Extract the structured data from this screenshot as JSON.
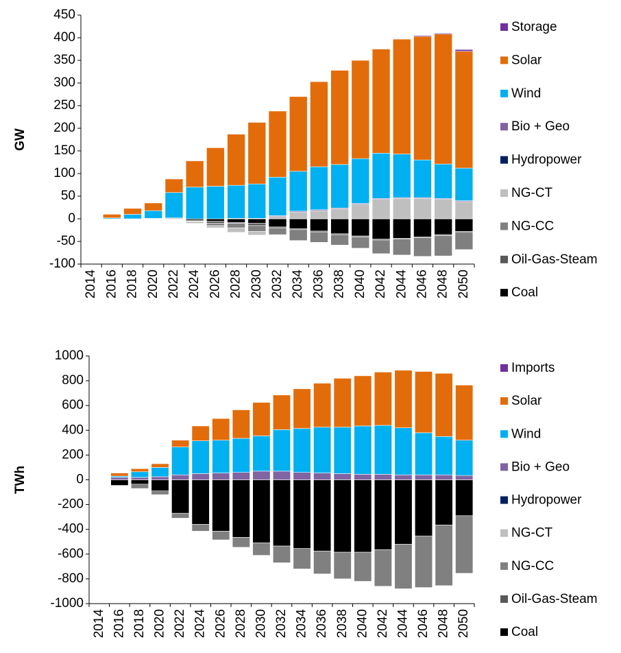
{
  "chart_data": [
    {
      "type": "bar",
      "stacked": true,
      "ylabel": "GW",
      "categories": [
        "2014",
        "2016",
        "2018",
        "2020",
        "2022",
        "2024",
        "2026",
        "2028",
        "2030",
        "2032",
        "2034",
        "2036",
        "2038",
        "2040",
        "2042",
        "2044",
        "2046",
        "2048",
        "2050"
      ],
      "series": [
        {
          "name": "Coal",
          "color": "#000000",
          "values": [
            0,
            0,
            0,
            0,
            -1,
            -3,
            -5,
            -8,
            -10,
            -18,
            -22,
            -27,
            -33,
            -38,
            -45,
            -43,
            -40,
            -35,
            -28
          ]
        },
        {
          "name": "Oil-Gas-Steam",
          "color": "#595959",
          "values": [
            0,
            0,
            0,
            0,
            -1,
            -2,
            -5,
            -2,
            -5,
            -2,
            -2,
            -2,
            -2,
            -2,
            -2,
            -2,
            -2,
            -2,
            -2
          ]
        },
        {
          "name": "NG-CC",
          "color": "#808080",
          "values": [
            0,
            0,
            0,
            0,
            0,
            -1,
            -5,
            -10,
            -13,
            -15,
            -24,
            -23,
            -23,
            -25,
            -30,
            -35,
            -41,
            -45,
            -38
          ]
        },
        {
          "name": "NG-CT",
          "color": "#bfbfbf",
          "values": [
            0,
            0,
            0,
            1,
            2,
            -4,
            -5,
            -10,
            -8,
            5,
            15,
            18,
            22,
            32,
            43,
            45,
            45,
            43,
            38
          ]
        },
        {
          "name": "Hydropower",
          "color": "#002060",
          "values": [
            0,
            0,
            0,
            0,
            0,
            0,
            0,
            0,
            0,
            0,
            0,
            0,
            0,
            0,
            0,
            0,
            0,
            0,
            0
          ]
        },
        {
          "name": "Bio + Geo",
          "color": "#8064a2",
          "values": [
            0,
            0,
            0,
            0,
            0,
            0,
            0,
            1,
            1,
            2,
            2,
            2,
            2,
            2,
            2,
            2,
            2,
            2,
            2
          ]
        },
        {
          "name": "Wind",
          "color": "#00b0f0",
          "values": [
            0,
            2,
            10,
            17,
            56,
            70,
            72,
            73,
            76,
            85,
            88,
            95,
            96,
            99,
            100,
            96,
            83,
            76,
            72
          ]
        },
        {
          "name": "Solar",
          "color": "#e36c0a",
          "values": [
            0,
            8,
            13,
            17,
            30,
            58,
            85,
            113,
            136,
            146,
            165,
            188,
            208,
            217,
            230,
            254,
            273,
            287,
            258
          ]
        },
        {
          "name": "Storage",
          "color": "#7030a0",
          "values": [
            0,
            0,
            0,
            0,
            0,
            0,
            0,
            0,
            0,
            0,
            0,
            1,
            0,
            0,
            0,
            1,
            2,
            2,
            4
          ]
        }
      ],
      "ylim": [
        -100,
        450
      ],
      "yticks": [
        -100,
        -50,
        0,
        50,
        100,
        150,
        200,
        250,
        300,
        350,
        400,
        450
      ],
      "legend": "right"
    },
    {
      "type": "bar",
      "stacked": true,
      "ylabel": "TWh",
      "categories": [
        "2014",
        "2016",
        "2018",
        "2020",
        "2022",
        "2024",
        "2026",
        "2028",
        "2030",
        "2032",
        "2034",
        "2036",
        "2038",
        "2040",
        "2042",
        "2044",
        "2046",
        "2048",
        "2050"
      ],
      "series": [
        {
          "name": "Coal",
          "color": "#000000",
          "values": [
            0,
            -45,
            -35,
            -90,
            -270,
            -360,
            -415,
            -465,
            -510,
            -535,
            -555,
            -575,
            -585,
            -585,
            -565,
            -520,
            -455,
            -365,
            -290
          ]
        },
        {
          "name": "Oil-Gas-Steam",
          "color": "#595959",
          "values": [
            0,
            0,
            0,
            0,
            0,
            0,
            0,
            0,
            0,
            0,
            0,
            0,
            0,
            0,
            0,
            0,
            0,
            0,
            0
          ]
        },
        {
          "name": "NG-CC",
          "color": "#808080",
          "values": [
            0,
            0,
            -35,
            -30,
            -40,
            -55,
            -70,
            -80,
            -100,
            -135,
            -165,
            -185,
            -215,
            -235,
            -295,
            -360,
            -415,
            -490,
            -465
          ]
        },
        {
          "name": "NG-CT",
          "color": "#bfbfbf",
          "values": [
            0,
            0,
            0,
            0,
            0,
            0,
            0,
            0,
            0,
            0,
            0,
            0,
            0,
            0,
            0,
            0,
            0,
            0,
            0
          ]
        },
        {
          "name": "Hydropower",
          "color": "#002060",
          "values": [
            0,
            0,
            0,
            0,
            0,
            0,
            0,
            0,
            0,
            0,
            0,
            0,
            0,
            0,
            0,
            0,
            0,
            0,
            0
          ]
        },
        {
          "name": "Bio + Geo",
          "color": "#8064a2",
          "values": [
            0,
            20,
            20,
            25,
            40,
            50,
            55,
            60,
            70,
            70,
            60,
            55,
            50,
            45,
            45,
            40,
            40,
            40,
            35
          ]
        },
        {
          "name": "Wind",
          "color": "#00b0f0",
          "values": [
            0,
            10,
            45,
            75,
            225,
            265,
            265,
            275,
            285,
            335,
            355,
            370,
            375,
            390,
            395,
            380,
            340,
            310,
            285
          ]
        },
        {
          "name": "Solar",
          "color": "#e36c0a",
          "values": [
            0,
            25,
            25,
            30,
            55,
            120,
            175,
            230,
            270,
            280,
            320,
            355,
            395,
            405,
            430,
            465,
            495,
            510,
            445
          ]
        },
        {
          "name": "Imports",
          "color": "#7030a0",
          "values": [
            0,
            0,
            0,
            0,
            0,
            0,
            0,
            0,
            0,
            0,
            0,
            0,
            0,
            0,
            0,
            0,
            0,
            0,
            0
          ]
        }
      ],
      "ylim": [
        -1000,
        1000
      ],
      "yticks": [
        -1000,
        -800,
        -600,
        -400,
        -200,
        0,
        200,
        400,
        600,
        800,
        1000
      ],
      "legend": "right"
    }
  ]
}
